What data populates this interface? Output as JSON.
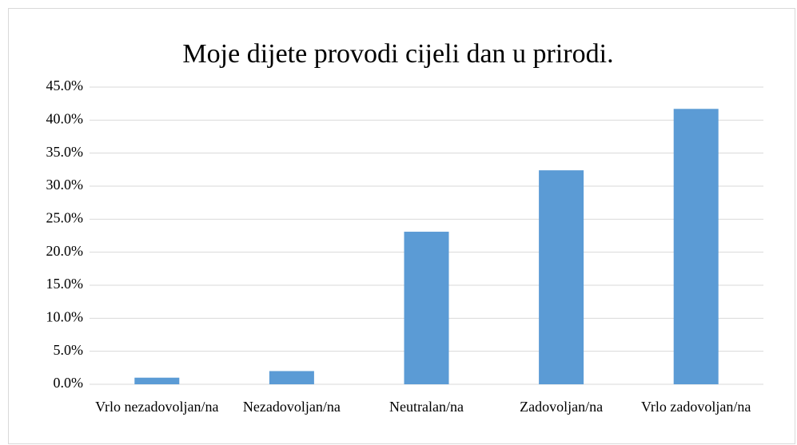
{
  "chart_data": {
    "type": "bar",
    "title": "Moje dijete provodi cijeli dan u prirodi.",
    "categories": [
      "Vrlo nezadovoljan/na",
      "Nezadovoljan/na",
      "Neutralan/na",
      "Zadovoljan/na",
      "Vrlo zadovoljan/na"
    ],
    "values": [
      1.0,
      2.0,
      23.1,
      32.4,
      41.7
    ],
    "color": "#5b9bd5",
    "ylim": [
      0,
      45
    ],
    "yticks": [
      {
        "value": 0,
        "label": "0.0%"
      },
      {
        "value": 5,
        "label": "5.0%"
      },
      {
        "value": 10,
        "label": "10.0%"
      },
      {
        "value": 15,
        "label": "15.0%"
      },
      {
        "value": 20,
        "label": "20.0%"
      },
      {
        "value": 25,
        "label": "25.0%"
      },
      {
        "value": 30,
        "label": "30.0%"
      },
      {
        "value": 35,
        "label": "35.0%"
      },
      {
        "value": 40,
        "label": "40.0%"
      },
      {
        "value": 45,
        "label": "45.0%"
      }
    ],
    "grid": true
  }
}
